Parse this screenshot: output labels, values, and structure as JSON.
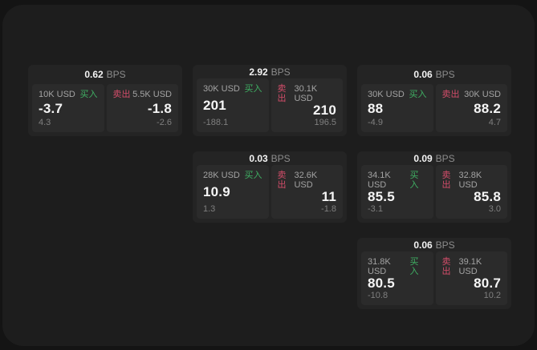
{
  "labels": {
    "bps_unit": "BPS",
    "buy": "买入",
    "sell": "卖出"
  },
  "colors": {
    "buy_green": "#3faf63",
    "sell_red": "#d34d6a",
    "surface": "#1d1d1d",
    "card": "#242424",
    "panel": "#2b2b2b"
  },
  "cards": [
    {
      "bps": "0.62",
      "buy": {
        "notional": "10K USD",
        "price": "-3.7",
        "delta": "4.3"
      },
      "sell": {
        "notional": "5.5K USD",
        "price": "-1.8",
        "delta": "-2.6"
      }
    },
    {
      "bps": "2.92",
      "buy": {
        "notional": "30K USD",
        "price": "201",
        "delta": "-188.1"
      },
      "sell": {
        "notional": "30.1K USD",
        "price": "210",
        "delta": "196.5"
      }
    },
    {
      "bps": "0.06",
      "buy": {
        "notional": "30K USD",
        "price": "88",
        "delta": "-4.9"
      },
      "sell": {
        "notional": "30K USD",
        "price": "88.2",
        "delta": "4.7"
      }
    },
    {
      "bps": "0.03",
      "buy": {
        "notional": "28K USD",
        "price": "10.9",
        "delta": "1.3"
      },
      "sell": {
        "notional": "32.6K USD",
        "price": "11",
        "delta": "-1.8"
      }
    },
    {
      "bps": "0.09",
      "buy": {
        "notional": "34.1K USD",
        "price": "85.5",
        "delta": "-3.1"
      },
      "sell": {
        "notional": "32.8K USD",
        "price": "85.8",
        "delta": "3.0"
      }
    },
    {
      "bps": "0.06",
      "buy": {
        "notional": "31.8K USD",
        "price": "80.5",
        "delta": "-10.8"
      },
      "sell": {
        "notional": "39.1K USD",
        "price": "80.7",
        "delta": "10.2"
      }
    }
  ]
}
